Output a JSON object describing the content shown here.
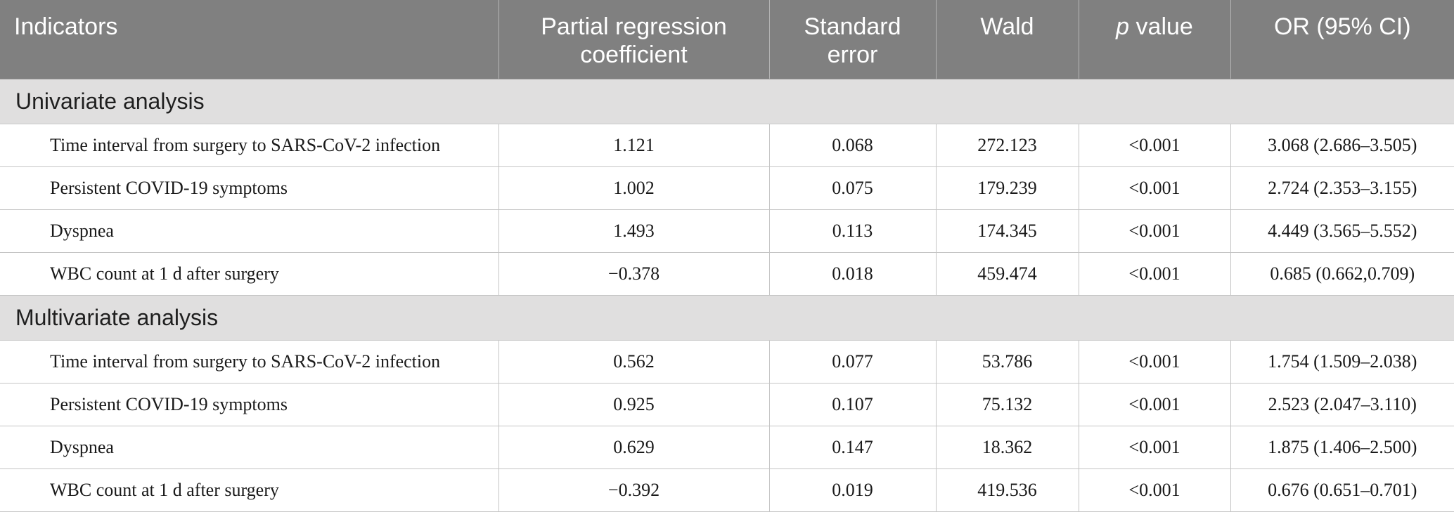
{
  "headers": {
    "indicators": "Indicators",
    "coef": "Partial regression coefficient",
    "se": "Standard error",
    "wald": "Wald",
    "p_italic": "p",
    "p_rest": " value",
    "or": "OR (95% CI)"
  },
  "sections": [
    {
      "title": "Univariate analysis",
      "rows": [
        {
          "indicator": "Time interval from surgery to SARS-CoV-2 infection",
          "coef": "1.121",
          "se": "0.068",
          "wald": "272.123",
          "p": "<0.001",
          "or": "3.068 (2.686–3.505)"
        },
        {
          "indicator": "Persistent COVID-19 symptoms",
          "coef": "1.002",
          "se": "0.075",
          "wald": "179.239",
          "p": "<0.001",
          "or": "2.724 (2.353–3.155)"
        },
        {
          "indicator": "Dyspnea",
          "coef": "1.493",
          "se": "0.113",
          "wald": "174.345",
          "p": "<0.001",
          "or": "4.449 (3.565–5.552)"
        },
        {
          "indicator": "WBC count at 1 d after surgery",
          "coef": "−0.378",
          "se": "0.018",
          "wald": "459.474",
          "p": "<0.001",
          "or": "0.685 (0.662,0.709)"
        }
      ]
    },
    {
      "title": "Multivariate analysis",
      "rows": [
        {
          "indicator": "Time interval from surgery to SARS-CoV-2 infection",
          "coef": "0.562",
          "se": "0.077",
          "wald": "53.786",
          "p": "<0.001",
          "or": "1.754 (1.509–2.038)"
        },
        {
          "indicator": "Persistent COVID-19 symptoms",
          "coef": "0.925",
          "se": "0.107",
          "wald": "75.132",
          "p": "<0.001",
          "or": "2.523 (2.047–3.110)"
        },
        {
          "indicator": "Dyspnea",
          "coef": "0.629",
          "se": "0.147",
          "wald": "18.362",
          "p": "<0.001",
          "or": "1.875 (1.406–2.500)"
        },
        {
          "indicator": "WBC count at 1 d after surgery",
          "coef": "−0.392",
          "se": "0.019",
          "wald": "419.536",
          "p": "<0.001",
          "or": "0.676 (0.651–0.701)"
        }
      ]
    }
  ]
}
